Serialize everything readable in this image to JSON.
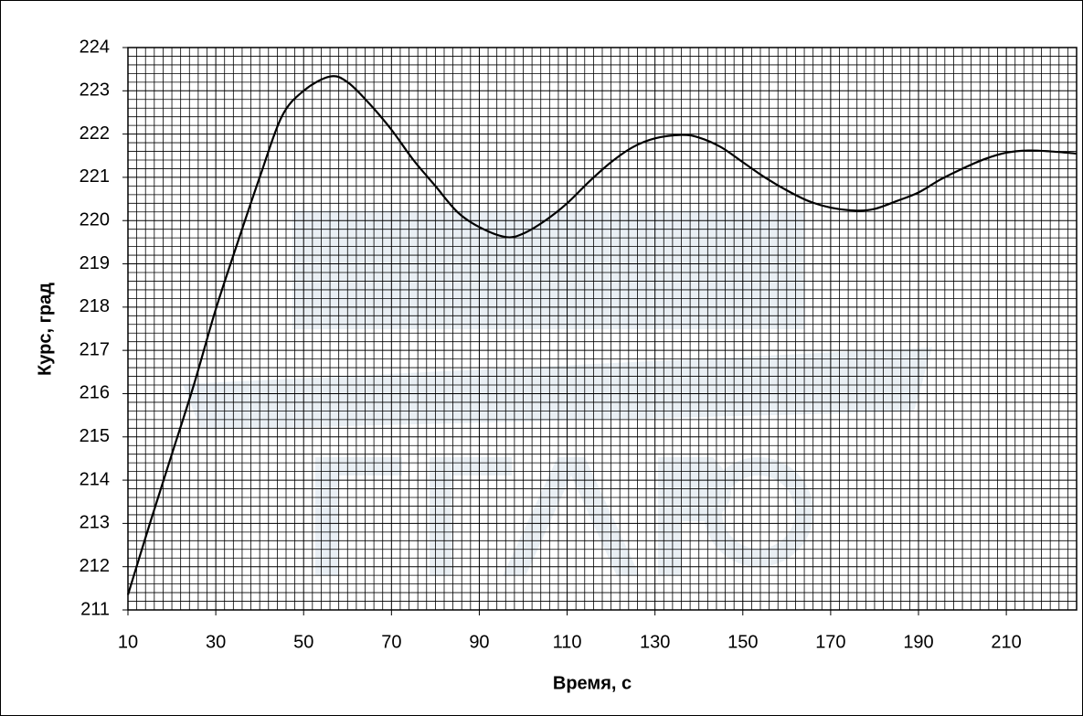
{
  "chart_data": {
    "type": "line",
    "x_label": "Время, с",
    "y_label": "Курс, град",
    "x": [
      10,
      15,
      20,
      25,
      30,
      35,
      40,
      45,
      50,
      56,
      60,
      65,
      70,
      75,
      80,
      85,
      90,
      96,
      100,
      105,
      110,
      115,
      120,
      125,
      130,
      136,
      140,
      145,
      150,
      155,
      160,
      165,
      170,
      176,
      180,
      185,
      190,
      195,
      200,
      205,
      210,
      215,
      220,
      226
    ],
    "series": [
      {
        "color": "#000000",
        "values": [
          211.35,
          213.0,
          214.6,
          216.2,
          217.95,
          219.5,
          221.0,
          222.4,
          223.0,
          223.33,
          223.2,
          222.7,
          222.1,
          221.4,
          220.8,
          220.2,
          219.85,
          219.62,
          219.7,
          220.0,
          220.4,
          220.9,
          221.35,
          221.7,
          221.9,
          221.98,
          221.92,
          221.7,
          221.35,
          221.0,
          220.7,
          220.45,
          220.3,
          220.23,
          220.27,
          220.45,
          220.65,
          220.95,
          221.2,
          221.42,
          221.57,
          221.62,
          221.6,
          221.55
        ]
      }
    ],
    "xlim": [
      10,
      226
    ],
    "ylim": [
      211,
      224
    ],
    "xticks": [
      10,
      30,
      50,
      70,
      90,
      110,
      130,
      150,
      170,
      190,
      210
    ],
    "yticks": [
      211,
      212,
      213,
      214,
      215,
      216,
      217,
      218,
      219,
      220,
      221,
      222,
      223,
      224
    ],
    "grid": true,
    "minor_grid": {
      "x": 10,
      "y": 5
    }
  }
}
